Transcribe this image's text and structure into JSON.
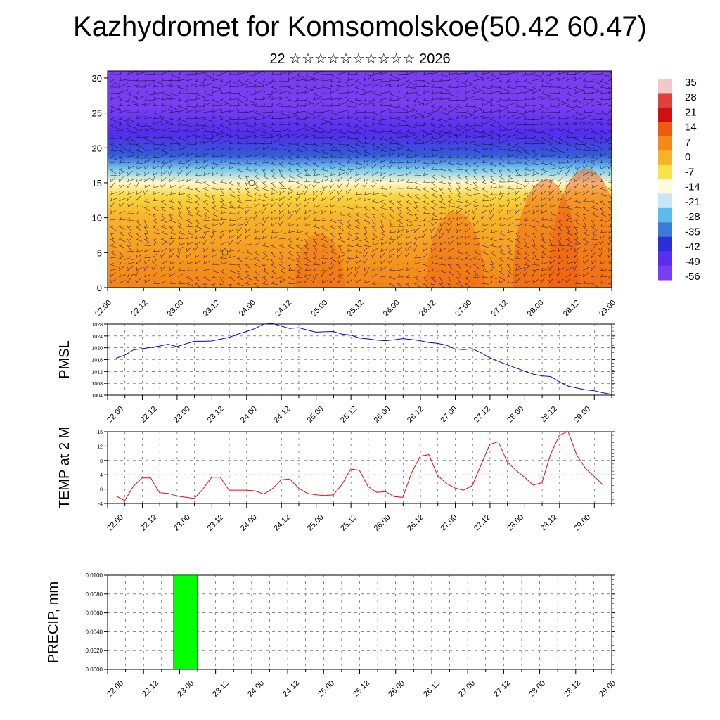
{
  "page": {
    "title": "Kazhydromet for Komsomolskoe(50.42 60.47)",
    "subtitle": "22 ☆☆☆☆☆☆☆☆☆☆ 2026"
  },
  "time_labels": [
    "22.00",
    "22.12",
    "23.00",
    "23.12",
    "24.00",
    "24.12",
    "25.00",
    "25.12",
    "26.00",
    "26.12",
    "27.00",
    "27.12",
    "28.00",
    "28.12",
    "29.00"
  ],
  "chart_data": [
    {
      "type": "heatmap",
      "name": "temperature cross-section with wind barbs",
      "x_labels": [
        "22.00",
        "22.12",
        "23.00",
        "23.12",
        "24.00",
        "24.12",
        "25.00",
        "25.12",
        "26.00",
        "26.12",
        "27.00",
        "27.12",
        "28.00",
        "28.12",
        "29.00"
      ],
      "y_ticks": [
        0,
        5,
        10,
        15,
        20,
        25,
        30
      ],
      "ylim": [
        0,
        31
      ],
      "colorbar": {
        "labels": [
          "35",
          "28",
          "21",
          "14",
          "7",
          "0",
          "-7",
          "-14",
          "-21",
          "-28",
          "-35",
          "-42",
          "-49",
          "-56"
        ],
        "colors": [
          "#f2c8c8",
          "#e04040",
          "#d01010",
          "#ee5a10",
          "#f48a18",
          "#f7b42a",
          "#fae248",
          "#fffbe0",
          "#c8e6f4",
          "#58bcec",
          "#3b7bd8",
          "#2a2fd8",
          "#5a2ef0",
          "#7a3ef2"
        ]
      },
      "temperature_profile": [
        {
          "level": 0,
          "value": 8
        },
        {
          "level": 5,
          "value": 4
        },
        {
          "level": 10,
          "value": 0
        },
        {
          "level": 13,
          "value": -5
        },
        {
          "level": 15,
          "value": -13
        },
        {
          "level": 17,
          "value": -26
        },
        {
          "level": 19,
          "value": -38
        },
        {
          "level": 22,
          "value": -48
        },
        {
          "level": 26,
          "value": -56
        },
        {
          "level": 31,
          "value": -58
        }
      ]
    },
    {
      "type": "line",
      "ylabel": "PMSL",
      "x_labels": [
        "22.00",
        "22.12",
        "23.00",
        "23.12",
        "24.00",
        "24.12",
        "25.00",
        "25.12",
        "26.00",
        "26.12",
        "27.00",
        "27.12",
        "28.00",
        "28.12",
        "29.00"
      ],
      "y_ticks": [
        1004,
        1008,
        1012,
        1016,
        1020,
        1024,
        1028
      ],
      "ylim": [
        1004,
        1028
      ],
      "color": "#0000ff",
      "values": [
        1016.5,
        1017.5,
        1019.3,
        1019.7,
        1020.1,
        1020.6,
        1021.2,
        1020.4,
        1021.3,
        1022.2,
        1022.2,
        1022.3,
        1022.9,
        1023.5,
        1024.6,
        1025.5,
        1026.5,
        1028.0,
        1028.2,
        1027.3,
        1026.5,
        1026.8,
        1026.0,
        1025.3,
        1025.4,
        1025.5,
        1024.6,
        1024.3,
        1023.3,
        1023.0,
        1022.6,
        1022.4,
        1022.7,
        1023.1,
        1022.8,
        1022.4,
        1021.8,
        1021.5,
        1020.9,
        1019.6,
        1019.4,
        1019.7,
        1018.3,
        1016.6,
        1015.4,
        1014.3,
        1013.2,
        1012.1,
        1011.1,
        1010.5,
        1010.3,
        1008.5,
        1007.1,
        1006.4,
        1005.8,
        1005.5,
        1004.8,
        1004.3
      ]
    },
    {
      "type": "line",
      "ylabel": "TEMP at 2 M",
      "x_labels": [
        "22.00",
        "22.12",
        "23.00",
        "23.12",
        "24.00",
        "24.12",
        "25.00",
        "25.12",
        "26.00",
        "26.12",
        "27.00",
        "27.12",
        "28.00",
        "28.12",
        "29.00"
      ],
      "y_ticks": [
        -4,
        0,
        4,
        8,
        12,
        16
      ],
      "ylim": [
        -4,
        16
      ],
      "color": "#ff0000",
      "values": [
        -1.9,
        -3.2,
        0.8,
        3.1,
        3.1,
        -1.0,
        -1.2,
        -1.9,
        -2.3,
        -2.6,
        0.0,
        3.3,
        3.3,
        -0.3,
        -0.3,
        -0.3,
        -0.5,
        -1.4,
        0.1,
        2.6,
        2.8,
        0.3,
        -1.2,
        -1.6,
        -1.8,
        -1.6,
        1.3,
        5.6,
        5.3,
        0.7,
        -0.9,
        -0.7,
        -2.1,
        -2.3,
        4.5,
        9.2,
        9.6,
        3.8,
        1.6,
        0.3,
        -0.3,
        1.0,
        6.8,
        12.5,
        13.2,
        7.6,
        5.3,
        3.3,
        1.1,
        1.8,
        9.7,
        15.0,
        16.1,
        9.5,
        5.8,
        3.6,
        1.2
      ]
    },
    {
      "type": "bar",
      "ylabel": "PRECIP, mm",
      "x_labels": [
        "22.00",
        "22.12",
        "23.00",
        "23.12",
        "24.00",
        "24.12",
        "25.00",
        "25.12",
        "26.00",
        "26.12",
        "27.00",
        "27.12",
        "28.00",
        "28.12",
        "29.00"
      ],
      "y_ticks": [
        "0.0000",
        "0.0020",
        "0.0040",
        "0.0060",
        "0.0080",
        "0.0100"
      ],
      "ylim": [
        0,
        0.01
      ],
      "color": "#00ff00",
      "bars": [
        {
          "start_hour": 18,
          "end_hour": 26,
          "value": 0.01
        }
      ]
    }
  ]
}
